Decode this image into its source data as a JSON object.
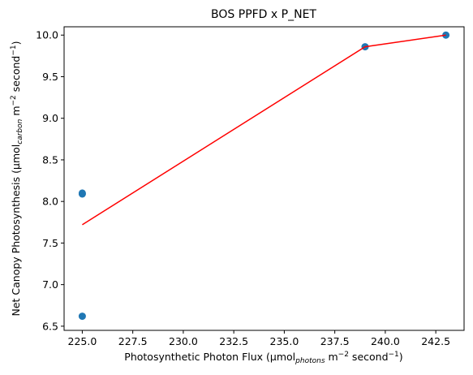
{
  "chart_data": {
    "type": "scatter",
    "title": "BOS PPFD x P_NET",
    "xlabel": {
      "pre": "Photosynthetic Photon Flux (µmol",
      "sub": "photons",
      "mid": " m",
      "sup1": "−2",
      "mid2": " second",
      "sup2": "−1",
      "post": ")"
    },
    "ylabel": {
      "pre": "Net Canopy Photosynthesis (µmol",
      "sub": "carbon",
      "mid": " m",
      "sup1": "−2",
      "mid2": " second",
      "sup2": "−1",
      "post": ")"
    },
    "xlim": [
      224.1,
      243.9
    ],
    "ylim": [
      6.45,
      10.1
    ],
    "xticks": [
      "225.0",
      "227.5",
      "230.0",
      "232.5",
      "235.0",
      "237.5",
      "240.0",
      "242.5"
    ],
    "yticks": [
      "6.5",
      "7.0",
      "7.5",
      "8.0",
      "8.5",
      "9.0",
      "9.5",
      "10.0"
    ],
    "grid": false,
    "series": [
      {
        "kind": "scatter",
        "color": "#1f77b4",
        "points": [
          {
            "x": 225.0,
            "y": 8.09
          },
          {
            "x": 225.0,
            "y": 8.1
          },
          {
            "x": 225.0,
            "y": 6.62
          },
          {
            "x": 239.0,
            "y": 9.86
          },
          {
            "x": 243.0,
            "y": 10.0
          }
        ]
      },
      {
        "kind": "line",
        "color": "#ff0000",
        "points": [
          {
            "x": 225.0,
            "y": 7.72
          },
          {
            "x": 239.0,
            "y": 9.86
          },
          {
            "x": 243.0,
            "y": 10.0
          }
        ]
      }
    ]
  }
}
